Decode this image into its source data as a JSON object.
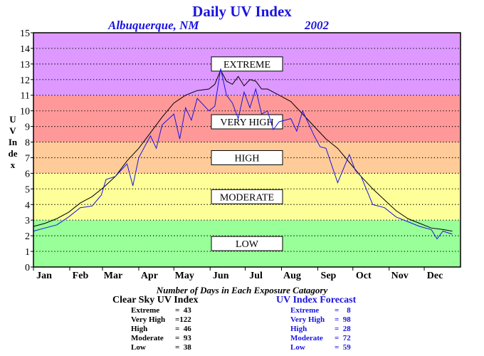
{
  "colors": {
    "title": "#1a14e0",
    "clear_sky_line": "#000000",
    "forecast_line": "#1a14e0"
  },
  "chart_data": {
    "type": "line",
    "title": "Daily UV Index",
    "subtitle_location": "Albuquerque, NM",
    "subtitle_year": "2002",
    "ylabel": "UV Index",
    "ylim": [
      0,
      15
    ],
    "yticks": [
      "0",
      "1",
      "2",
      "3",
      "4",
      "5",
      "6",
      "7",
      "8",
      "9",
      "10",
      "11",
      "12",
      "13",
      "14",
      "15"
    ],
    "xlim": [
      0,
      365
    ],
    "xticks": [
      {
        "label": "Jan",
        "day": 0
      },
      {
        "label": "Feb",
        "day": 31
      },
      {
        "label": "Mar",
        "day": 59
      },
      {
        "label": "Apr",
        "day": 90
      },
      {
        "label": "May",
        "day": 120
      },
      {
        "label": "Jun",
        "day": 151
      },
      {
        "label": "Jul",
        "day": 181
      },
      {
        "label": "Aug",
        "day": 212
      },
      {
        "label": "Sep",
        "day": 243
      },
      {
        "label": "Oct",
        "day": 273
      },
      {
        "label": "Nov",
        "day": 304
      },
      {
        "label": "Dec",
        "day": 334
      }
    ],
    "grid": true,
    "bands": [
      {
        "label": "LOW",
        "from": 0,
        "to": 3,
        "color": "#99ff99"
      },
      {
        "label": "MODERATE",
        "from": 3,
        "to": 6,
        "color": "#ffff99"
      },
      {
        "label": "HIGH",
        "from": 6,
        "to": 8,
        "color": "#ffcc99"
      },
      {
        "label": "VERY HIGH",
        "from": 8,
        "to": 11,
        "color": "#ff9999"
      },
      {
        "label": "EXTREME",
        "from": 11,
        "to": 15,
        "color": "#dd99ff"
      }
    ],
    "series": [
      {
        "name": "Clear Sky UV Index",
        "color": "#000000",
        "x": [
          0,
          10,
          20,
          30,
          40,
          50,
          60,
          70,
          80,
          90,
          100,
          110,
          120,
          130,
          140,
          150,
          155,
          160,
          165,
          170,
          175,
          180,
          185,
          190,
          195,
          200,
          210,
          220,
          230,
          240,
          250,
          260,
          270,
          280,
          290,
          300,
          310,
          320,
          330,
          340,
          350,
          358
        ],
        "y": [
          2.6,
          2.8,
          3.1,
          3.5,
          4.1,
          4.5,
          5.1,
          5.8,
          6.8,
          7.6,
          8.6,
          9.6,
          10.5,
          11.0,
          11.3,
          11.4,
          11.7,
          12.6,
          11.9,
          11.7,
          12.2,
          11.6,
          12.0,
          11.9,
          11.4,
          11.4,
          11.0,
          10.6,
          9.8,
          9.0,
          8.2,
          7.6,
          6.7,
          5.8,
          5.0,
          4.3,
          3.6,
          3.1,
          2.8,
          2.5,
          2.4,
          2.3
        ]
      },
      {
        "name": "UV Index Forecast",
        "color": "#1a14e0",
        "x": [
          0,
          10,
          20,
          30,
          40,
          50,
          58,
          62,
          70,
          80,
          85,
          90,
          100,
          105,
          110,
          120,
          125,
          130,
          135,
          140,
          150,
          155,
          160,
          165,
          170,
          175,
          180,
          185,
          190,
          195,
          200,
          205,
          210,
          220,
          225,
          230,
          240,
          245,
          250,
          260,
          270,
          275,
          280,
          290,
          300,
          310,
          320,
          330,
          340,
          345,
          350,
          358
        ],
        "y": [
          2.3,
          2.5,
          2.7,
          3.2,
          3.8,
          3.9,
          4.6,
          5.6,
          5.8,
          6.6,
          5.2,
          7.0,
          8.4,
          7.6,
          9.1,
          9.8,
          8.2,
          10.2,
          9.4,
          10.8,
          10.0,
          10.3,
          12.7,
          11.0,
          10.5,
          9.5,
          11.2,
          10.2,
          11.4,
          9.8,
          10.0,
          8.8,
          9.3,
          9.5,
          8.7,
          10.0,
          8.4,
          7.7,
          7.6,
          5.4,
          7.2,
          6.2,
          5.8,
          4.0,
          3.8,
          3.2,
          2.9,
          2.6,
          2.4,
          1.8,
          2.3,
          2.1
        ]
      }
    ]
  },
  "summary": {
    "caption": "Number of Days in Each Exposure Catagory",
    "clear_sky": {
      "heading": "Clear Sky UV Index",
      "rows": [
        {
          "label": "Extreme",
          "value": "=  43"
        },
        {
          "label": "Very High",
          "value": "=122"
        },
        {
          "label": "High",
          "value": "=  46"
        },
        {
          "label": "Moderate",
          "value": "=  93"
        },
        {
          "label": "Low",
          "value": "=  38"
        }
      ]
    },
    "forecast": {
      "heading": "UV Index Forecast",
      "rows": [
        {
          "label": "Extreme",
          "value": "=    8"
        },
        {
          "label": "Very High",
          "value": "=  98"
        },
        {
          "label": "High",
          "value": "=  28"
        },
        {
          "label": "Moderate",
          "value": "=  72"
        },
        {
          "label": "Low",
          "value": "=  59"
        }
      ]
    }
  }
}
